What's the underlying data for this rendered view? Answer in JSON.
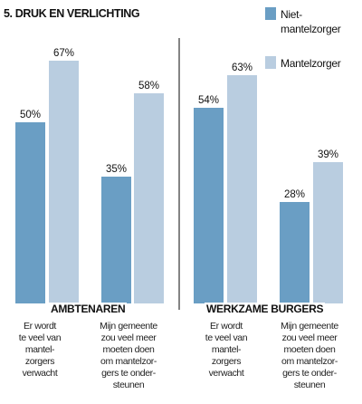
{
  "title": "5. DRUK EN VERLICHTING",
  "legend": [
    {
      "label": "Niet-\nmantelzorger",
      "color": "#6a9ec4"
    },
    {
      "label": "Mantelzorger",
      "color": "#b9cde0"
    }
  ],
  "panels": [
    {
      "label": "AMBTENAREN"
    },
    {
      "label": "WERKZAME BURGERS"
    }
  ],
  "chart_data": {
    "type": "bar",
    "title": "5. DRUK EN VERLICHTING",
    "ylim": [
      0,
      100
    ],
    "value_suffix": "%",
    "series": [
      {
        "name": "Niet-mantelzorger",
        "color": "#6a9ec4"
      },
      {
        "name": "Mantelzorger",
        "color": "#b9cde0"
      }
    ],
    "panels": [
      {
        "name": "AMBTENAREN",
        "categories": [
          "Er wordt\nte veel van\nmantel-\nzorgers\nverwacht",
          "Mijn gemeente\nzou veel meer\nmoeten doen\nom mantelzor-\ngers te onder-\nsteunen"
        ],
        "values": [
          [
            50,
            35
          ],
          [
            67,
            58
          ]
        ]
      },
      {
        "name": "WERKZAME BURGERS",
        "categories": [
          "Er wordt\nte veel van\nmantel-\nzorgers\nverwacht",
          "Mijn gemeente\nzou veel meer\nmoeten doen\nom mantelzor-\ngers te onder-\nsteunen"
        ],
        "values": [
          [
            54,
            28
          ],
          [
            63,
            39
          ]
        ]
      }
    ],
    "grid": false,
    "legend_position": "top-right"
  }
}
